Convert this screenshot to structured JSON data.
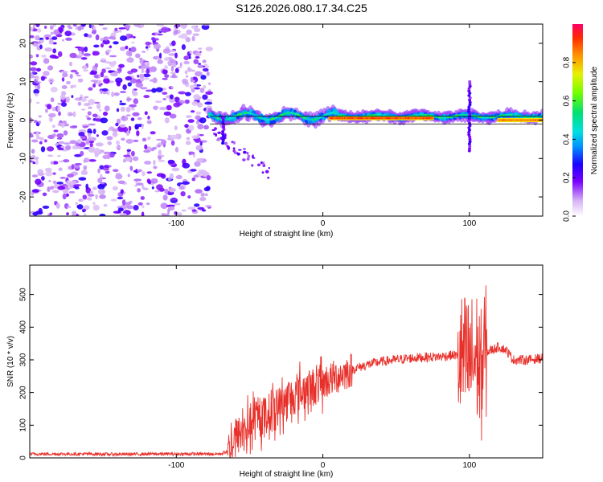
{
  "title": "S126.2026.080.17.34.C25",
  "chart_data": [
    {
      "type": "heatmap",
      "name": "spectrogram",
      "xlabel": "Height of straight line (km)",
      "ylabel": "Frequency (Hz)",
      "xlim": [
        -200,
        150
      ],
      "ylim": [
        -25,
        25
      ],
      "xticks": [
        -100,
        0,
        100
      ],
      "yticks": [
        -20,
        -10,
        0,
        10,
        20
      ],
      "colorbar": {
        "label": "Normalized spectral amplitude",
        "range": [
          0,
          1
        ],
        "ticks": [
          "0.0",
          "0.2",
          "0.4",
          "0.6",
          "0.8"
        ]
      },
      "features": {
        "noise_region_x": [
          -200,
          -77
        ],
        "ridge_segments": [
          {
            "x_start": -77,
            "x_end": 150,
            "freq_hz": 1,
            "amplitude": 0.5
          },
          {
            "x_start": 5,
            "x_end": 75,
            "freq_hz": 0.5,
            "amplitude": 0.9
          },
          {
            "x_start": 120,
            "x_end": 150,
            "freq_hz": 0,
            "amplitude": 0.85
          }
        ],
        "reference_lines_hz": [
          -1,
          1
        ]
      }
    },
    {
      "type": "line",
      "name": "snr",
      "xlabel": "Height of straight line (km)",
      "ylabel": "SNR (10 * v/v)",
      "xlim": [
        -200,
        150
      ],
      "ylim": [
        0,
        590
      ],
      "xticks": [
        -100,
        0,
        100
      ],
      "yticks": [
        0,
        100,
        200,
        300,
        400,
        500
      ],
      "color": "#e8302a",
      "series": [
        {
          "name": "SNR",
          "x": [
            -200,
            -180,
            -160,
            -140,
            -120,
            -100,
            -80,
            -70,
            -65,
            -60,
            -50,
            -40,
            -30,
            -20,
            -10,
            0,
            10,
            20,
            30,
            40,
            50,
            60,
            70,
            80,
            90,
            95,
            100,
            105,
            108,
            110,
            115,
            120,
            125,
            130,
            140,
            150
          ],
          "y": [
            12,
            12,
            12,
            11,
            12,
            12,
            12,
            12,
            20,
            60,
            100,
            130,
            160,
            190,
            210,
            230,
            250,
            270,
            285,
            295,
            300,
            305,
            308,
            310,
            315,
            300,
            290,
            310,
            250,
            320,
            330,
            340,
            330,
            300,
            300,
            305
          ]
        }
      ]
    }
  ]
}
